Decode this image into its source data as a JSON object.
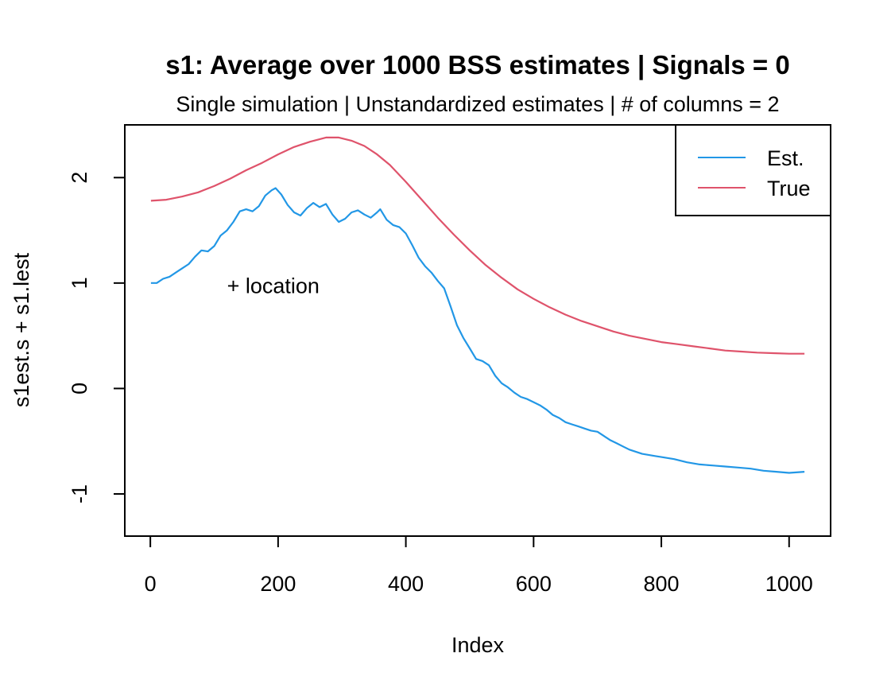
{
  "chart_data": {
    "type": "line",
    "title": "s1: Average over 1000 BSS estimates  |  Signals = 0",
    "subtitle": "Single simulation  |  Unstandardized estimates  |  # of columns = 2",
    "xlabel": "Index",
    "ylabel": "s1est.s + s1.lest",
    "xlim": [
      -40,
      1065
    ],
    "ylim": [
      -1.4,
      2.5
    ],
    "x_ticks": [
      0,
      200,
      400,
      600,
      800,
      1000
    ],
    "x_tick_labels": [
      "0",
      "200",
      "400",
      "600",
      "800",
      "1000"
    ],
    "y_ticks": [
      -1,
      0,
      1,
      2
    ],
    "y_tick_labels": [
      "-1",
      "0",
      "1",
      "2"
    ],
    "grid": false,
    "legend_position": "top-right",
    "annotations": [
      {
        "text": "+ location",
        "x": 120,
        "y": 0.98
      }
    ],
    "series": [
      {
        "name": "Est.",
        "color": "#2297E6",
        "x": [
          1,
          10,
          20,
          30,
          40,
          50,
          60,
          70,
          80,
          90,
          100,
          110,
          120,
          130,
          140,
          150,
          160,
          170,
          180,
          190,
          196,
          205,
          215,
          225,
          235,
          245,
          255,
          265,
          275,
          285,
          295,
          305,
          315,
          325,
          335,
          345,
          355,
          360,
          370,
          380,
          390,
          400,
          410,
          420,
          430,
          440,
          450,
          460,
          470,
          480,
          490,
          500,
          510,
          520,
          530,
          540,
          550,
          560,
          570,
          580,
          590,
          600,
          610,
          620,
          630,
          640,
          650,
          660,
          670,
          680,
          690,
          700,
          710,
          720,
          730,
          740,
          750,
          760,
          770,
          780,
          790,
          800,
          820,
          840,
          860,
          880,
          900,
          920,
          940,
          960,
          980,
          1000,
          1024
        ],
        "y": [
          1.0,
          1.0,
          1.04,
          1.06,
          1.1,
          1.14,
          1.18,
          1.25,
          1.31,
          1.3,
          1.35,
          1.45,
          1.5,
          1.58,
          1.68,
          1.7,
          1.68,
          1.73,
          1.83,
          1.88,
          1.9,
          1.84,
          1.74,
          1.67,
          1.64,
          1.71,
          1.76,
          1.72,
          1.75,
          1.65,
          1.58,
          1.61,
          1.67,
          1.69,
          1.65,
          1.62,
          1.67,
          1.7,
          1.6,
          1.55,
          1.53,
          1.47,
          1.36,
          1.24,
          1.16,
          1.1,
          1.02,
          0.95,
          0.78,
          0.6,
          0.48,
          0.38,
          0.28,
          0.26,
          0.22,
          0.12,
          0.05,
          0.01,
          -0.04,
          -0.08,
          -0.1,
          -0.13,
          -0.16,
          -0.2,
          -0.25,
          -0.28,
          -0.32,
          -0.34,
          -0.36,
          -0.38,
          -0.4,
          -0.41,
          -0.45,
          -0.49,
          -0.52,
          -0.55,
          -0.58,
          -0.6,
          -0.62,
          -0.63,
          -0.64,
          -0.65,
          -0.67,
          -0.7,
          -0.72,
          -0.73,
          -0.74,
          -0.75,
          -0.76,
          -0.78,
          -0.79,
          -0.8,
          -0.79
        ]
      },
      {
        "name": "True",
        "color": "#DF536B",
        "x": [
          1,
          25,
          50,
          75,
          100,
          125,
          150,
          175,
          200,
          225,
          250,
          275,
          295,
          315,
          335,
          355,
          375,
          400,
          425,
          450,
          475,
          500,
          525,
          550,
          575,
          600,
          625,
          650,
          675,
          700,
          725,
          750,
          775,
          800,
          825,
          850,
          875,
          900,
          925,
          950,
          975,
          1000,
          1024
        ],
        "y": [
          1.78,
          1.79,
          1.82,
          1.86,
          1.92,
          1.99,
          2.07,
          2.14,
          2.22,
          2.29,
          2.34,
          2.38,
          2.38,
          2.35,
          2.3,
          2.22,
          2.12,
          1.96,
          1.79,
          1.62,
          1.46,
          1.31,
          1.17,
          1.05,
          0.94,
          0.85,
          0.77,
          0.7,
          0.64,
          0.59,
          0.54,
          0.5,
          0.47,
          0.44,
          0.42,
          0.4,
          0.38,
          0.36,
          0.35,
          0.34,
          0.335,
          0.33,
          0.33
        ]
      }
    ]
  }
}
